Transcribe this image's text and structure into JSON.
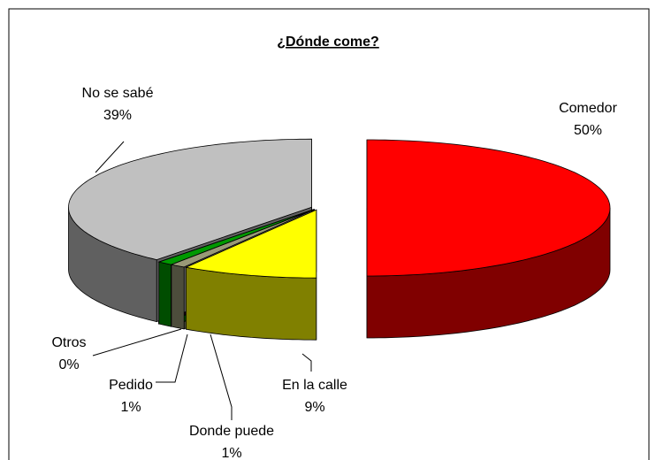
{
  "chart_data": {
    "type": "pie3d",
    "title": "¿Dónde come?",
    "categories": [
      "Comedor",
      "En la calle",
      "Donde puede",
      "Pedido",
      "Otros",
      "No se sabé"
    ],
    "values": [
      50,
      9,
      1,
      1,
      0,
      39
    ],
    "value_labels": [
      "50%",
      "9%",
      "1%",
      "1%",
      "0%",
      "39%"
    ],
    "colors": [
      "#ff0000",
      "#ffff00",
      "#999977",
      "#009900",
      "#330033",
      "#c0c0c0"
    ]
  }
}
